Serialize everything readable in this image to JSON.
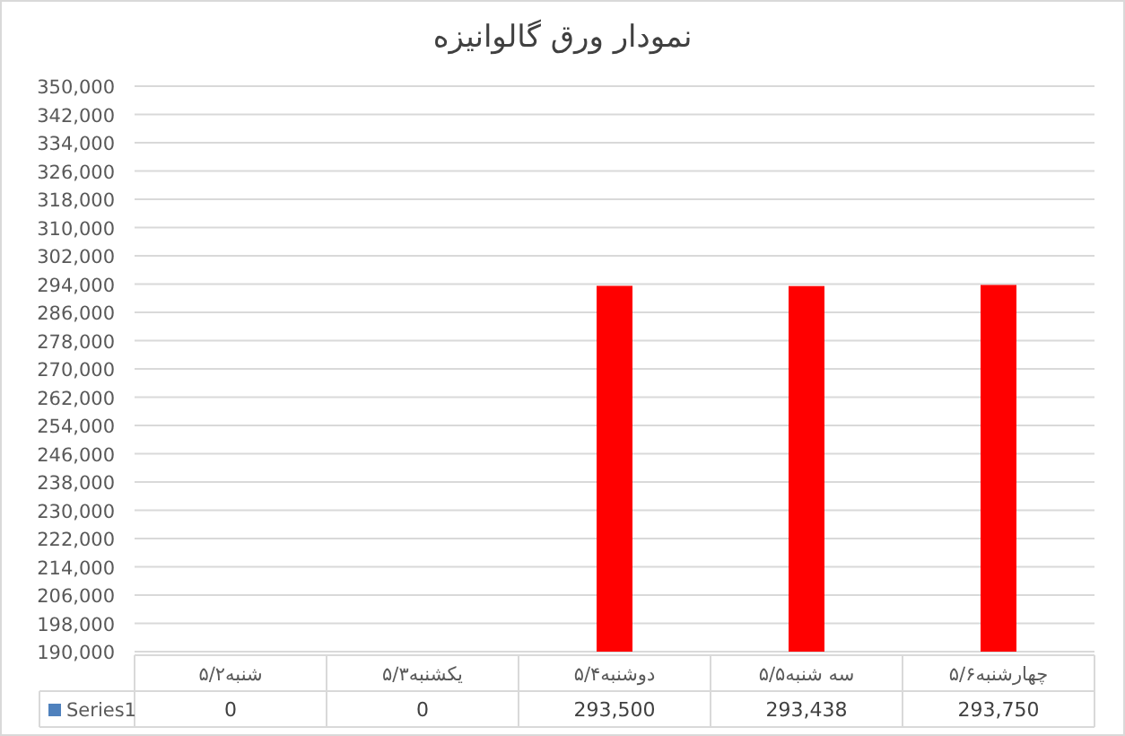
{
  "chart_data": {
    "type": "bar",
    "title": "نمودار ورق گالوانیزه",
    "categories": [
      "شنبه۵/۲",
      "یکشنبه۵/۳",
      "دوشنبه۵/۴",
      "سه شنبه۵/۵",
      "چهارشنبه۵/۶"
    ],
    "series": [
      {
        "name": "Series1",
        "color": "#ff0000",
        "values": [
          null,
          null,
          293500,
          293438,
          293750
        ],
        "value_labels": [
          "0",
          "0",
          "293,500",
          "293,438",
          "293,750"
        ]
      }
    ],
    "ylim": [
      190000,
      350000
    ],
    "yticks": [
      {
        "value": 190000,
        "label": "190,000"
      },
      {
        "value": 198000,
        "label": "198,000"
      },
      {
        "value": 206000,
        "label": "206,000"
      },
      {
        "value": 214000,
        "label": "214,000"
      },
      {
        "value": 222000,
        "label": "222,000"
      },
      {
        "value": 230000,
        "label": "230,000"
      },
      {
        "value": 238000,
        "label": "238,000"
      },
      {
        "value": 246000,
        "label": "246,000"
      },
      {
        "value": 254000,
        "label": "254,000"
      },
      {
        "value": 262000,
        "label": "262,000"
      },
      {
        "value": 270000,
        "label": "270,000"
      },
      {
        "value": 278000,
        "label": "278,000"
      },
      {
        "value": 286000,
        "label": "286,000"
      },
      {
        "value": 294000,
        "label": "294,000"
      },
      {
        "value": 302000,
        "label": "302,000"
      },
      {
        "value": 310000,
        "label": "310,000"
      },
      {
        "value": 318000,
        "label": "318,000"
      },
      {
        "value": 326000,
        "label": "326,000"
      },
      {
        "value": 334000,
        "label": "334,000"
      },
      {
        "value": 342000,
        "label": "342,000"
      },
      {
        "value": 350000,
        "label": "350,000"
      }
    ],
    "grid": "y"
  }
}
